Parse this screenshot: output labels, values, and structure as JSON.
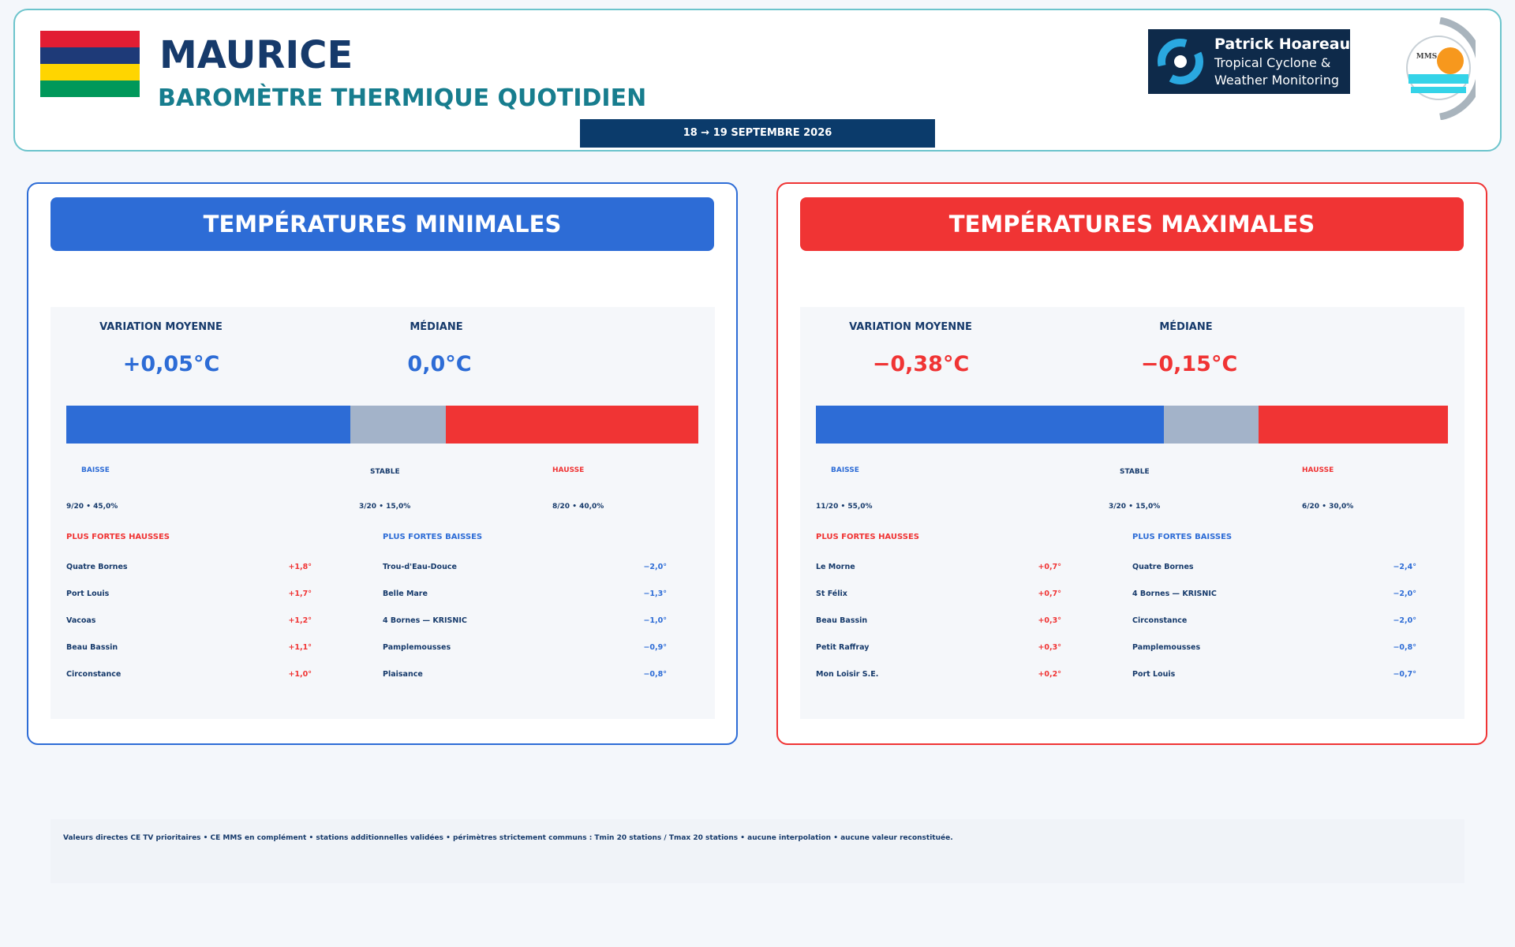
{
  "header": {
    "title": "MAURICE",
    "subtitle": "BAROMÈTRE THERMIQUE QUOTIDIEN",
    "date": "18 → 19 SEPTEMBRE 2026",
    "logo": [
      "Patrick Hoareau",
      "Tropical Cyclone &",
      "Weather Monitoring"
    ],
    "mms_logo": "MMS"
  },
  "panels": [
    {
      "title": "TEMPÉRATURES MINIMALES",
      "color": "#2d6cd6",
      "stats": [
        {
          "label": "VARIATION MOYENNE",
          "value": "+0,05°C"
        },
        {
          "label": "MÉDIANE",
          "value": "0,0°C"
        }
      ],
      "distribution": [
        {
          "label": "BAISSE",
          "value": 9,
          "value_label": "9/20 • 45,0%",
          "color": "#2d6cd6"
        },
        {
          "label": "STABLE",
          "value": 3,
          "value_label": "3/20 • 15,0%",
          "color": "#a3b3c9"
        },
        {
          "label": "HAUSSE",
          "value": 8,
          "value_label": "8/20 • 40,0%",
          "color": "#f03434"
        }
      ],
      "rises": {
        "title": "PLUS FORTES HAUSSES",
        "rows": [
          [
            "Quatre Bornes",
            "+1,8°"
          ],
          [
            "Port Louis",
            "+1,7°"
          ],
          [
            "Vacoas",
            "+1,2°"
          ],
          [
            "Beau Bassin",
            "+1,1°"
          ],
          [
            "Circonstance",
            "+1,0°"
          ]
        ]
      },
      "falls": {
        "title": "PLUS FORTES BAISSES",
        "rows": [
          [
            "Trou-d'Eau-Douce",
            "−2,0°"
          ],
          [
            "Belle Mare",
            "−1,3°"
          ],
          [
            "4 Bornes — KRISNIC",
            "−1,0°"
          ],
          [
            "Pamplemousses",
            "−0,9°"
          ],
          [
            "Plaisance",
            "−0,8°"
          ]
        ]
      }
    },
    {
      "title": "TEMPÉRATURES MAXIMALES",
      "color": "#f03434",
      "stats": [
        {
          "label": "VARIATION MOYENNE",
          "value": "−0,38°C"
        },
        {
          "label": "MÉDIANE",
          "value": "−0,15°C"
        }
      ],
      "distribution": [
        {
          "label": "BAISSE",
          "value": 11,
          "value_label": "11/20 • 55,0%",
          "color": "#2d6cd6"
        },
        {
          "label": "STABLE",
          "value": 3,
          "value_label": "3/20 • 15,0%",
          "color": "#a3b3c9"
        },
        {
          "label": "HAUSSE",
          "value": 6,
          "value_label": "6/20 • 30,0%",
          "color": "#f03434"
        }
      ],
      "rises": {
        "title": "PLUS FORTES HAUSSES",
        "rows": [
          [
            "Le Morne",
            "+0,7°"
          ],
          [
            "St Félix",
            "+0,7°"
          ],
          [
            "Beau Bassin",
            "+0,3°"
          ],
          [
            "Petit Raffray",
            "+0,3°"
          ],
          [
            "Mon Loisir S.E.",
            "+0,2°"
          ]
        ]
      },
      "falls": {
        "title": "PLUS FORTES BAISSES",
        "rows": [
          [
            "Quatre Bornes",
            "−2,4°"
          ],
          [
            "4 Bornes — KRISNIC",
            "−2,0°"
          ],
          [
            "Circonstance",
            "−2,0°"
          ],
          [
            "Pamplemousses",
            "−0,8°"
          ],
          [
            "Port Louis",
            "−0,7°"
          ]
        ]
      }
    }
  ],
  "footer": "Valeurs directes CE TV prioritaires • CE MMS en complément • stations additionnelles validées • périmètres strictement communs : Tmin 20 stations / Tmax 20 stations • aucune interpolation • aucune valeur reconstituée."
}
